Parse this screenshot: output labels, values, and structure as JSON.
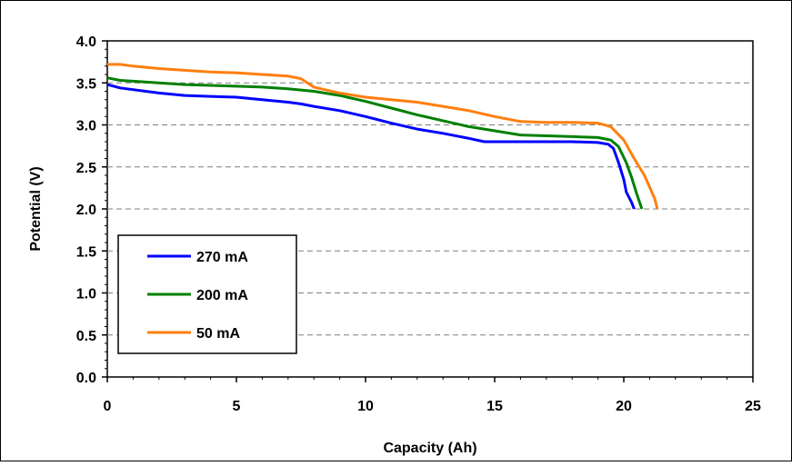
{
  "chart_data": {
    "type": "line",
    "xlabel": "Capacity (Ah)",
    "ylabel": "Potential (V)",
    "xlim": [
      0,
      25
    ],
    "ylim": [
      0,
      4
    ],
    "x_ticks": [
      "0",
      "5",
      "10",
      "15",
      "20",
      "25"
    ],
    "y_ticks": [
      "0.0",
      "0.5",
      "1.0",
      "1.5",
      "2.0",
      "2.5",
      "3.0",
      "3.5",
      "4.0"
    ],
    "grid": "horizontal dashed",
    "legend_position": "bottom-left",
    "series": [
      {
        "name": "270 mA",
        "color": "#0000ff",
        "points": [
          [
            0,
            3.48
          ],
          [
            0.5,
            3.44
          ],
          [
            1,
            3.42
          ],
          [
            2,
            3.38
          ],
          [
            3,
            3.35
          ],
          [
            4,
            3.34
          ],
          [
            5,
            3.33
          ],
          [
            6,
            3.3
          ],
          [
            7,
            3.27
          ],
          [
            7.5,
            3.25
          ],
          [
            8,
            3.22
          ],
          [
            9,
            3.17
          ],
          [
            10,
            3.1
          ],
          [
            11,
            3.02
          ],
          [
            12,
            2.95
          ],
          [
            13,
            2.9
          ],
          [
            14,
            2.84
          ],
          [
            14.6,
            2.8
          ],
          [
            15,
            2.8
          ],
          [
            16,
            2.8
          ],
          [
            17,
            2.8
          ],
          [
            18,
            2.8
          ],
          [
            19,
            2.79
          ],
          [
            19.4,
            2.77
          ],
          [
            19.6,
            2.72
          ],
          [
            19.8,
            2.55
          ],
          [
            20,
            2.35
          ],
          [
            20.1,
            2.2
          ],
          [
            20.3,
            2.08
          ],
          [
            20.4,
            2.0
          ]
        ]
      },
      {
        "name": "200 mA",
        "color": "#008000",
        "points": [
          [
            0,
            3.56
          ],
          [
            0.5,
            3.53
          ],
          [
            1,
            3.52
          ],
          [
            2,
            3.5
          ],
          [
            3,
            3.48
          ],
          [
            4,
            3.47
          ],
          [
            5,
            3.46
          ],
          [
            6,
            3.45
          ],
          [
            7,
            3.43
          ],
          [
            8,
            3.4
          ],
          [
            9,
            3.35
          ],
          [
            10,
            3.28
          ],
          [
            11,
            3.2
          ],
          [
            12,
            3.12
          ],
          [
            13,
            3.05
          ],
          [
            14,
            2.98
          ],
          [
            15,
            2.93
          ],
          [
            16,
            2.88
          ],
          [
            17,
            2.87
          ],
          [
            18,
            2.86
          ],
          [
            19,
            2.85
          ],
          [
            19.5,
            2.82
          ],
          [
            19.8,
            2.74
          ],
          [
            20.1,
            2.55
          ],
          [
            20.3,
            2.38
          ],
          [
            20.5,
            2.18
          ],
          [
            20.7,
            2.0
          ]
        ]
      },
      {
        "name": "50 mA",
        "color": "#ff7f0e",
        "points": [
          [
            0,
            3.72
          ],
          [
            0.5,
            3.72
          ],
          [
            1,
            3.7
          ],
          [
            2,
            3.67
          ],
          [
            3,
            3.65
          ],
          [
            4,
            3.63
          ],
          [
            5,
            3.62
          ],
          [
            6,
            3.6
          ],
          [
            7,
            3.58
          ],
          [
            7.5,
            3.55
          ],
          [
            8,
            3.45
          ],
          [
            9,
            3.38
          ],
          [
            10,
            3.33
          ],
          [
            11,
            3.3
          ],
          [
            12,
            3.27
          ],
          [
            13,
            3.22
          ],
          [
            14,
            3.17
          ],
          [
            15,
            3.1
          ],
          [
            16,
            3.04
          ],
          [
            17,
            3.03
          ],
          [
            18,
            3.03
          ],
          [
            19,
            3.02
          ],
          [
            19.5,
            2.98
          ],
          [
            20,
            2.82
          ],
          [
            20.4,
            2.6
          ],
          [
            20.8,
            2.4
          ],
          [
            21.2,
            2.12
          ],
          [
            21.3,
            2.0
          ]
        ]
      }
    ]
  }
}
